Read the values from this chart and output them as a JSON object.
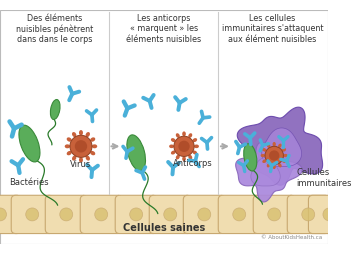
{
  "bg_color": "#ffffff",
  "antibody_color": "#4ab0d9",
  "bacteria_body_color": "#5aad5a",
  "bacteria_outline": "#3a8a3a",
  "bacteria_flagellum": "#2a7a2a",
  "virus_body_color": "#c8613a",
  "virus_inner_color": "#a04020",
  "virus_spike_color": "#c8613a",
  "immune_cell_color_1": "#8866bb",
  "immune_cell_color_2": "#aa88dd",
  "immune_cell_edge": "#6644aa",
  "healthy_cell_color": "#f0ddb0",
  "healthy_cell_outline": "#c8a870",
  "healthy_cell_nucleus": "#d8c070",
  "arrow_color": "#aaaaaa",
  "text_color": "#333333",
  "divider_color": "#cccccc",
  "title1": "Des éléments\nnuisibles pénètrent\ndans dans le corps",
  "title2": "Les anticorps\n« marquent » les\néléments nuisibles",
  "title3": "Les cellules\nimmunitaires s'attaquent\naux élément nuisibles",
  "label_bacteries": "Bactéries",
  "label_virus": "Virus",
  "label_anticorps": "Anticorps",
  "label_cellules_immun": "Cellules\nimmunitaires",
  "label_cellules_saines": "Cellules saines",
  "label_copyright": "© AboutKidsHealth.ca",
  "figsize": [
    3.56,
    2.54
  ],
  "dpi": 100
}
